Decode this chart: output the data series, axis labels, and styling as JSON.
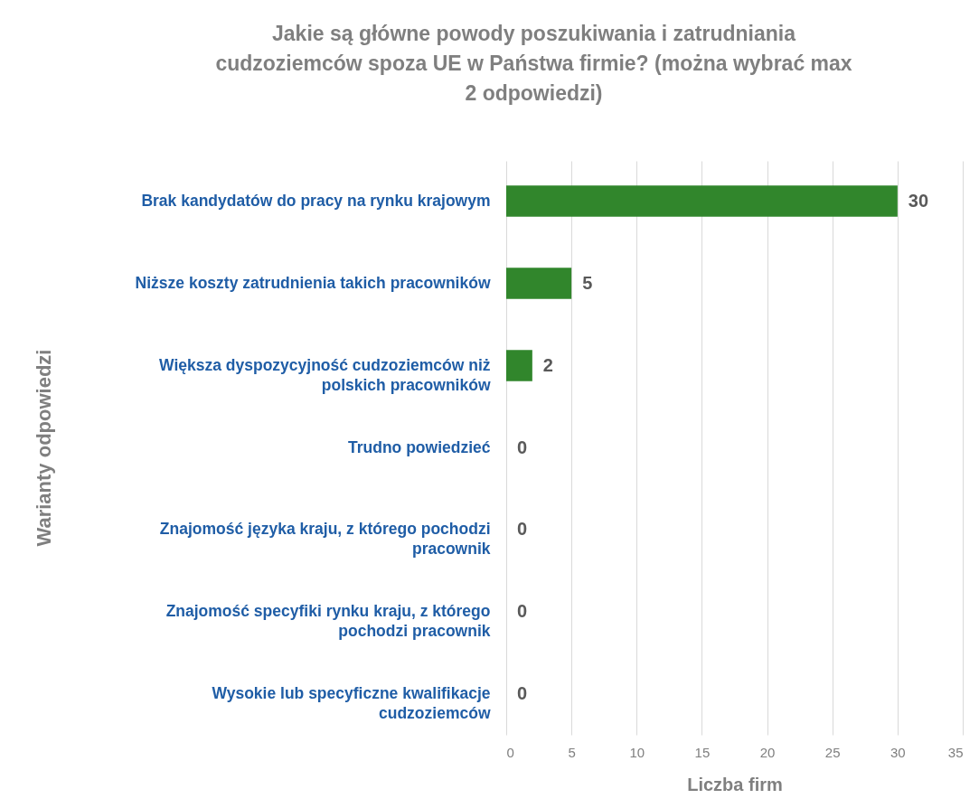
{
  "chart_data": {
    "type": "bar",
    "orientation": "horizontal",
    "title": "Jakie są główne powody poszukiwania i zatrudniania cudzoziemców spoza UE w Państwa firmie? (można wybrać max 2 odpowiedzi)",
    "xlabel": "Liczba firm",
    "ylabel": "Warianty odpowiedzi",
    "categories": [
      "Brak kandydatów do pracy na rynku krajowym",
      "Niższe koszty zatrudnienia takich pracowników",
      "Większa dyspozycyjność cudzoziemców niż polskich pracowników",
      "Trudno powiedzieć",
      "Znajomość języka kraju, z którego pochodzi pracownik",
      "Znajomość specyfiki rynku kraju, z którego pochodzi pracownik",
      "Wysokie lub specyficzne kwalifikacje cudzoziemców"
    ],
    "values": [
      30,
      5,
      2,
      0,
      0,
      0,
      0
    ],
    "color": "#31862c",
    "xlim": [
      0,
      35
    ],
    "xticks": [
      0,
      5,
      10,
      15,
      20,
      25,
      30,
      35
    ],
    "grid": "x",
    "data_labels": true
  }
}
